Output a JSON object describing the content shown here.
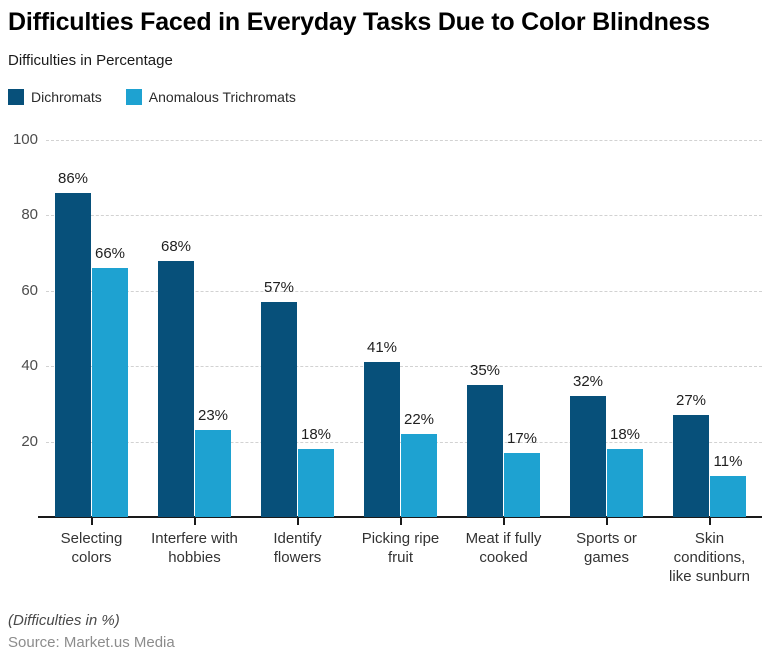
{
  "header": {
    "title": "Difficulties Faced in Everyday Tasks Due to Color Blindness",
    "subtitle": "Difficulties in Percentage"
  },
  "chart_data": {
    "type": "bar",
    "title": "Difficulties Faced in Everyday Tasks Due to Color Blindness",
    "subtitle": "Difficulties in Percentage",
    "categories": [
      "Selecting\ncolors",
      "Interfere with\nhobbies",
      "Identify\nflowers",
      "Picking ripe\nfruit",
      "Meat if fully\ncooked",
      "Sports or\ngames",
      "Skin\nconditions,\nlike sunburn"
    ],
    "series": [
      {
        "name": "Dichromats",
        "color": "#07507a",
        "values": [
          86,
          68,
          57,
          41,
          35,
          32,
          27
        ]
      },
      {
        "name": "Anomalous Trichromats",
        "color": "#1ea2d1",
        "values": [
          66,
          23,
          18,
          22,
          17,
          18,
          11
        ]
      }
    ],
    "value_suffix": "%",
    "xlabel": "",
    "ylabel": "",
    "ylim": [
      0,
      100
    ],
    "yticks": [
      20,
      40,
      60,
      80,
      100
    ],
    "grid": "horizontal-dashed",
    "legend_position": "top-left"
  },
  "footer": {
    "note": "(Difficulties in %)",
    "source": "Source: Market.us Media"
  },
  "colors": {
    "gridline": "#d2d2d2",
    "axis": "#1a1a1a",
    "y_label_text": "#4d4d4d",
    "category_text": "#333333",
    "value_label_text": "#1f1f1f"
  }
}
